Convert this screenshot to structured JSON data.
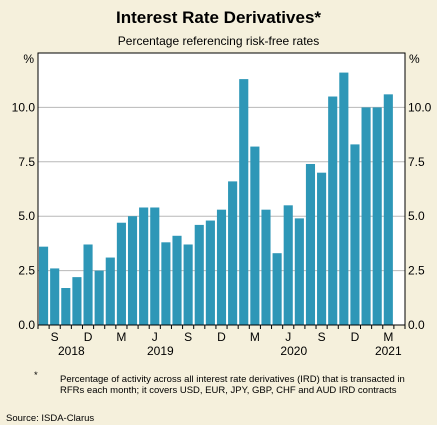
{
  "chart_data": {
    "type": "bar",
    "title": "Interest Rate Derivatives*",
    "subtitle": "Percentage referencing risk-free rates",
    "ylabel_left": "%",
    "ylabel_right": "%",
    "ylim": [
      0,
      12.5
    ],
    "yticks": [
      "0.0",
      "2.5",
      "5.0",
      "7.5",
      "10.0"
    ],
    "grid": true,
    "bar_color": "#2e97b7",
    "categories": [
      "2018-08",
      "2018-09",
      "2018-10",
      "2018-11",
      "2018-12",
      "2019-01",
      "2019-02",
      "2019-03",
      "2019-04",
      "2019-05",
      "2019-06",
      "2019-07",
      "2019-08",
      "2019-09",
      "2019-10",
      "2019-11",
      "2019-12",
      "2020-01",
      "2020-02",
      "2020-03",
      "2020-04",
      "2020-05",
      "2020-06",
      "2020-07",
      "2020-08",
      "2020-09",
      "2020-10",
      "2020-11",
      "2020-12",
      "2021-01",
      "2021-02",
      "2021-03",
      "2021-04"
    ],
    "values": [
      3.6,
      2.6,
      1.7,
      2.2,
      3.7,
      2.5,
      3.1,
      4.7,
      5.0,
      5.4,
      5.4,
      3.8,
      4.1,
      3.7,
      4.6,
      4.8,
      5.3,
      6.6,
      11.3,
      8.2,
      5.3,
      3.3,
      5.5,
      4.9,
      7.4,
      7.0,
      10.5,
      11.6,
      8.3,
      10.0,
      10.0,
      10.6,
      0
    ],
    "x_tick_labels": [
      {
        "index": 1,
        "label": "S"
      },
      {
        "index": 4,
        "label": "D"
      },
      {
        "index": 7,
        "label": "M"
      },
      {
        "index": 10,
        "label": "J"
      },
      {
        "index": 13,
        "label": "S"
      },
      {
        "index": 16,
        "label": "D"
      },
      {
        "index": 19,
        "label": "M"
      },
      {
        "index": 22,
        "label": "J"
      },
      {
        "index": 25,
        "label": "S"
      },
      {
        "index": 28,
        "label": "D"
      },
      {
        "index": 31,
        "label": "M"
      }
    ],
    "year_labels": [
      {
        "index": 2.5,
        "label": "2018"
      },
      {
        "index": 10.5,
        "label": "2019"
      },
      {
        "index": 22.5,
        "label": "2020"
      },
      {
        "index": 31,
        "label": "2021"
      }
    ]
  },
  "footnote": {
    "marker": "*",
    "text": "Percentage of activity across all interest rate derivatives (IRD) that is transacted in RFRs each month; it covers USD, EUR, JPY, GBP, CHF and AUD IRD contracts"
  },
  "source": "Source:   ISDA-Clarus"
}
